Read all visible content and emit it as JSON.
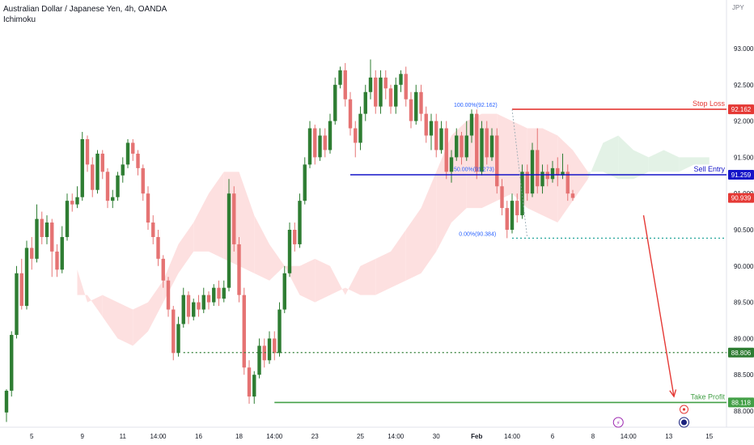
{
  "chart_data": {
    "type": "candlestick",
    "title": "Australian Dollar / Japanese Yen, 4h, OANDA",
    "indicator": "Ichimoku",
    "currency": "JPY",
    "ylim": [
      87.8,
      93.25
    ],
    "yticks": [
      88.0,
      88.5,
      89.0,
      89.5,
      90.0,
      90.5,
      91.0,
      91.5,
      92.0,
      92.5,
      93.0
    ],
    "ytick_labels": [
      "88.000",
      "88.500",
      "89.000",
      "89.500",
      "90.000",
      "90.500",
      "91.000",
      "91.500",
      "92.000",
      "92.500",
      "93.000"
    ],
    "xticks": [
      {
        "label": "5",
        "bar": 5
      },
      {
        "label": "9",
        "bar": 15
      },
      {
        "label": "11",
        "bar": 23
      },
      {
        "label": "14:00",
        "bar": 30
      },
      {
        "label": "16",
        "bar": 38
      },
      {
        "label": "18",
        "bar": 46
      },
      {
        "label": "14:00",
        "bar": 53
      },
      {
        "label": "23",
        "bar": 61
      },
      {
        "label": "25",
        "bar": 70
      },
      {
        "label": "14:00",
        "bar": 77
      },
      {
        "label": "30",
        "bar": 85
      },
      {
        "label": "Feb",
        "bar": 93
      },
      {
        "label": "14:00",
        "bar": 100
      },
      {
        "label": "6",
        "bar": 108
      },
      {
        "label": "8",
        "bar": 116
      },
      {
        "label": "14:00",
        "bar": 123
      },
      {
        "label": "13",
        "bar": 131
      },
      {
        "label": "15",
        "bar": 139
      }
    ],
    "candles": [
      [
        87.98,
        88.28,
        87.85,
        88.3
      ],
      [
        88.28,
        89.05,
        88.2,
        89.1
      ],
      [
        89.05,
        89.9,
        89.0,
        90.0
      ],
      [
        89.9,
        89.45,
        89.4,
        90.1
      ],
      [
        89.45,
        90.25,
        89.4,
        90.35
      ],
      [
        90.25,
        90.1,
        89.95,
        90.4
      ],
      [
        90.1,
        90.65,
        90.05,
        90.85
      ],
      [
        90.65,
        90.4,
        90.3,
        90.75
      ],
      [
        90.4,
        90.6,
        90.3,
        90.7
      ],
      [
        90.6,
        90.2,
        89.85,
        90.65
      ],
      [
        90.2,
        89.95,
        89.85,
        90.3
      ],
      [
        89.95,
        90.4,
        89.9,
        90.55
      ],
      [
        90.4,
        90.9,
        90.35,
        91.0
      ],
      [
        90.9,
        90.85,
        90.75,
        91.0
      ],
      [
        90.85,
        90.95,
        90.8,
        91.1
      ],
      [
        90.95,
        91.75,
        90.9,
        91.85
      ],
      [
        91.75,
        91.4,
        91.3,
        91.8
      ],
      [
        91.4,
        91.05,
        90.95,
        91.5
      ],
      [
        91.05,
        91.55,
        91.0,
        91.6
      ],
      [
        91.55,
        91.3,
        91.2,
        91.6
      ],
      [
        91.3,
        90.9,
        90.8,
        91.35
      ],
      [
        90.9,
        90.95,
        90.8,
        91.05
      ],
      [
        90.95,
        91.25,
        90.9,
        91.3
      ],
      [
        91.25,
        91.4,
        91.15,
        91.5
      ],
      [
        91.4,
        91.7,
        91.35,
        91.75
      ],
      [
        91.7,
        91.55,
        91.45,
        91.75
      ],
      [
        91.55,
        91.35,
        91.25,
        91.6
      ],
      [
        91.35,
        91.0,
        90.9,
        91.4
      ],
      [
        91.0,
        90.6,
        90.5,
        91.1
      ],
      [
        90.6,
        90.4,
        90.3,
        90.7
      ],
      [
        90.4,
        90.1,
        90.0,
        90.5
      ],
      [
        90.1,
        89.8,
        89.7,
        90.15
      ],
      [
        89.8,
        89.4,
        89.3,
        89.85
      ],
      [
        89.4,
        88.8,
        88.7,
        89.45
      ],
      [
        88.8,
        89.2,
        88.75,
        89.3
      ],
      [
        89.2,
        89.6,
        89.15,
        89.7
      ],
      [
        89.6,
        89.3,
        89.2,
        89.65
      ],
      [
        89.3,
        89.5,
        89.25,
        89.55
      ],
      [
        89.5,
        89.4,
        89.3,
        89.6
      ],
      [
        89.4,
        89.6,
        89.35,
        89.7
      ],
      [
        89.6,
        89.5,
        89.4,
        89.65
      ],
      [
        89.5,
        89.7,
        89.45,
        89.75
      ],
      [
        89.7,
        89.55,
        89.45,
        89.8
      ],
      [
        89.55,
        89.7,
        89.5,
        89.8
      ],
      [
        89.7,
        91.0,
        89.65,
        91.2
      ],
      [
        91.0,
        90.3,
        90.2,
        91.1
      ],
      [
        90.3,
        89.6,
        89.5,
        90.4
      ],
      [
        89.6,
        88.6,
        88.5,
        89.7
      ],
      [
        88.6,
        88.2,
        88.1,
        88.7
      ],
      [
        88.2,
        88.5,
        88.1,
        88.55
      ],
      [
        88.5,
        88.9,
        88.45,
        89.0
      ],
      [
        88.9,
        88.7,
        88.6,
        89.0
      ],
      [
        88.7,
        89.0,
        88.65,
        89.1
      ],
      [
        89.0,
        88.8,
        88.7,
        89.1
      ],
      [
        88.8,
        89.4,
        88.75,
        89.5
      ],
      [
        89.4,
        89.9,
        89.35,
        90.0
      ],
      [
        89.9,
        90.5,
        89.85,
        90.6
      ],
      [
        90.5,
        90.3,
        90.2,
        90.6
      ],
      [
        90.3,
        90.9,
        90.25,
        91.0
      ],
      [
        90.9,
        91.4,
        90.85,
        91.5
      ],
      [
        91.4,
        91.9,
        91.35,
        92.0
      ],
      [
        91.9,
        91.5,
        91.4,
        91.95
      ],
      [
        91.5,
        91.8,
        91.45,
        91.9
      ],
      [
        91.8,
        91.6,
        91.5,
        91.9
      ],
      [
        91.6,
        92.0,
        91.55,
        92.1
      ],
      [
        92.0,
        92.5,
        91.95,
        92.6
      ],
      [
        92.5,
        92.7,
        92.45,
        92.75
      ],
      [
        92.7,
        92.3,
        92.2,
        92.8
      ],
      [
        92.3,
        91.9,
        91.8,
        92.4
      ],
      [
        91.9,
        91.7,
        91.5,
        92.0
      ],
      [
        91.7,
        92.1,
        91.6,
        92.2
      ],
      [
        92.1,
        92.4,
        92.0,
        92.5
      ],
      [
        92.4,
        92.6,
        92.3,
        92.85
      ],
      [
        92.6,
        92.2,
        92.1,
        92.7
      ],
      [
        92.2,
        92.6,
        92.1,
        92.7
      ],
      [
        92.6,
        92.45,
        92.3,
        92.7
      ],
      [
        92.45,
        92.2,
        92.1,
        92.5
      ],
      [
        92.2,
        92.5,
        92.1,
        92.6
      ],
      [
        92.5,
        92.65,
        92.4,
        92.7
      ],
      [
        92.65,
        92.3,
        92.2,
        92.75
      ],
      [
        92.3,
        92.0,
        91.9,
        92.4
      ],
      [
        92.0,
        92.4,
        91.95,
        92.5
      ],
      [
        92.4,
        92.1,
        92.0,
        92.5
      ],
      [
        92.1,
        91.8,
        91.7,
        92.2
      ],
      [
        91.8,
        92.0,
        91.6,
        92.1
      ],
      [
        92.0,
        91.6,
        91.5,
        92.1
      ],
      [
        91.6,
        91.9,
        91.55,
        92.0
      ],
      [
        91.9,
        91.3,
        91.2,
        92.0
      ],
      [
        91.3,
        91.5,
        91.15,
        91.6
      ],
      [
        91.5,
        91.8,
        91.45,
        91.9
      ],
      [
        91.8,
        91.5,
        91.4,
        91.85
      ],
      [
        91.5,
        91.8,
        91.45,
        92.0
      ],
      [
        91.8,
        92.1,
        91.7,
        92.16
      ],
      [
        92.1,
        91.3,
        91.2,
        92.16
      ],
      [
        91.3,
        91.9,
        91.25,
        92.0
      ],
      [
        91.9,
        91.5,
        91.4,
        92.0
      ],
      [
        91.5,
        91.8,
        91.45,
        91.9
      ],
      [
        91.8,
        91.1,
        91.0,
        91.9
      ],
      [
        91.1,
        90.8,
        90.7,
        91.2
      ],
      [
        90.8,
        90.5,
        90.384,
        90.9
      ],
      [
        90.5,
        90.9,
        90.45,
        91.0
      ],
      [
        90.9,
        90.7,
        90.6,
        91.0
      ],
      [
        90.7,
        91.3,
        90.65,
        91.4
      ],
      [
        91.3,
        91.0,
        90.9,
        91.4
      ],
      [
        91.0,
        91.6,
        90.95,
        91.7
      ],
      [
        91.6,
        91.1,
        91.0,
        91.9
      ],
      [
        91.1,
        91.3,
        91.0,
        91.4
      ],
      [
        91.3,
        91.2,
        91.1,
        91.4
      ],
      [
        91.2,
        91.35,
        91.15,
        91.45
      ],
      [
        91.35,
        91.25,
        91.1,
        91.5
      ],
      [
        91.25,
        91.3,
        91.2,
        91.55
      ],
      [
        91.3,
        91.0,
        90.9,
        91.4
      ],
      [
        91.0,
        90.94,
        90.9,
        91.05
      ]
    ],
    "ichimoku_cloud": [
      {
        "x": 14,
        "a": 89.6,
        "b": 89.95
      },
      {
        "x": 16,
        "a": 89.6,
        "b": 89.5
      },
      {
        "x": 19,
        "a": 89.3,
        "b": 89.6
      },
      {
        "x": 22,
        "a": 89.0,
        "b": 89.5
      },
      {
        "x": 25,
        "a": 88.9,
        "b": 89.4
      },
      {
        "x": 28,
        "a": 89.1,
        "b": 89.5
      },
      {
        "x": 31,
        "a": 89.5,
        "b": 89.8
      },
      {
        "x": 34,
        "a": 89.9,
        "b": 90.3
      },
      {
        "x": 37,
        "a": 90.2,
        "b": 90.6
      },
      {
        "x": 40,
        "a": 90.2,
        "b": 91.0
      },
      {
        "x": 43,
        "a": 90.1,
        "b": 91.3
      },
      {
        "x": 46,
        "a": 90.0,
        "b": 91.3
      },
      {
        "x": 49,
        "a": 89.9,
        "b": 90.7
      },
      {
        "x": 52,
        "a": 89.8,
        "b": 90.3
      },
      {
        "x": 55,
        "a": 90.0,
        "b": 90.0
      },
      {
        "x": 58,
        "a": 89.6,
        "b": 90.0
      },
      {
        "x": 61,
        "a": 89.5,
        "b": 90.1
      },
      {
        "x": 64,
        "a": 89.6,
        "b": 90.0
      },
      {
        "x": 67,
        "a": 89.7,
        "b": 89.6
      },
      {
        "x": 70,
        "a": 89.6,
        "b": 90.0
      },
      {
        "x": 73,
        "a": 89.6,
        "b": 90.1
      },
      {
        "x": 76,
        "a": 89.7,
        "b": 90.2
      },
      {
        "x": 79,
        "a": 89.8,
        "b": 90.5
      },
      {
        "x": 82,
        "a": 89.9,
        "b": 90.8
      },
      {
        "x": 85,
        "a": 90.2,
        "b": 91.3
      },
      {
        "x": 88,
        "a": 90.6,
        "b": 91.8
      },
      {
        "x": 91,
        "a": 90.8,
        "b": 92.0
      },
      {
        "x": 94,
        "a": 90.8,
        "b": 92.1
      },
      {
        "x": 97,
        "a": 90.9,
        "b": 92.1
      },
      {
        "x": 100,
        "a": 91.0,
        "b": 92.0
      },
      {
        "x": 103,
        "a": 90.8,
        "b": 91.9
      },
      {
        "x": 106,
        "a": 90.7,
        "b": 91.9
      },
      {
        "x": 109,
        "a": 90.6,
        "b": 91.8
      },
      {
        "x": 112,
        "a": 90.9,
        "b": 91.6
      },
      {
        "x": 115,
        "a": 91.2,
        "b": 91.3
      },
      {
        "x": 118,
        "a": 91.7,
        "b": 91.3
      },
      {
        "x": 121,
        "a": 91.8,
        "b": 91.2
      },
      {
        "x": 124,
        "a": 91.6,
        "b": 91.2
      },
      {
        "x": 127,
        "a": 91.5,
        "b": 91.3
      },
      {
        "x": 130,
        "a": 91.6,
        "b": 91.3
      },
      {
        "x": 133,
        "a": 91.5,
        "b": 91.3
      },
      {
        "x": 136,
        "a": 91.5,
        "b": 91.4
      },
      {
        "x": 139,
        "a": 91.5,
        "b": 91.4
      }
    ],
    "levels": [
      {
        "name": "Stop Loss",
        "value": 92.162,
        "label": "92.162",
        "color": "#e53935",
        "style": "solid",
        "x_from_bar": 100
      },
      {
        "name": "Sell Entry",
        "value": 91.259,
        "label": "91.259",
        "color": "#1414c8",
        "style": "solid",
        "x_from_bar": 68
      },
      {
        "name": "",
        "value": 90.384,
        "label": "",
        "color": "#26a69a",
        "style": "dotted",
        "x_from_bar": 100
      },
      {
        "name": "",
        "value": 88.806,
        "label": "88.806",
        "color": "#2e7d32",
        "style": "dotted",
        "x_from_bar": 35
      },
      {
        "name": "Take Profit",
        "value": 88.118,
        "label": "88.118",
        "color": "#43a047",
        "style": "solid",
        "x_from_bar": 53
      }
    ],
    "current_price": {
      "value": 90.939,
      "label": "90.939",
      "color": "#e53935"
    },
    "fib_labels": [
      {
        "text": "100.00%(92.162)",
        "value": 92.162,
        "bar": 92
      },
      {
        "text": "50.00%(91.273)",
        "value": 91.273,
        "bar": 92
      },
      {
        "text": "0.00%(90.384)",
        "value": 90.384,
        "bar": 93
      }
    ],
    "arrow": {
      "from_bar": 126,
      "from_value": 90.7,
      "to_bar": 132,
      "to_value": 88.2,
      "color": "#e53935"
    },
    "event_icons": [
      {
        "name": "lightning-icon",
        "glyph": "⚡",
        "bar": 121,
        "color": "#9c27b0"
      },
      {
        "name": "flag-au-icon",
        "glyph": "",
        "bar": 134,
        "color": "#1a237e"
      }
    ],
    "colors": {
      "up": "#2e7d32",
      "down": "#e57373",
      "cloud_bull": "#e3f2e6",
      "cloud_bear": "#fde0e0",
      "axis_text": "#131722"
    }
  }
}
